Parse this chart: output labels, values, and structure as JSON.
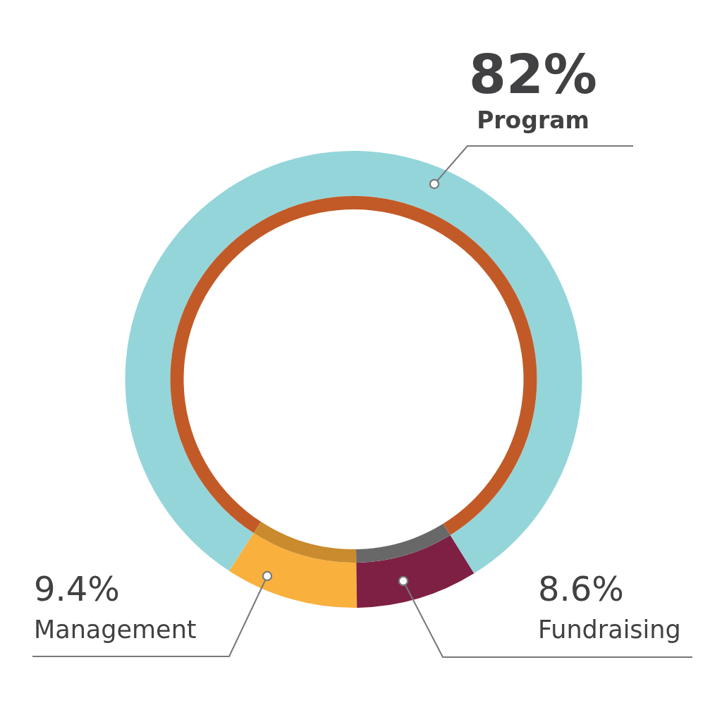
{
  "chart_data": {
    "type": "donut",
    "categories": [
      "Program",
      "Management",
      "Fundraising"
    ],
    "series": [
      {
        "values": [
          82,
          9.4,
          8.6
        ],
        "colors": [
          "#94d5da",
          "#f9b03d",
          "#7e2043"
        ],
        "value_labels": [
          "82%",
          "9.4%",
          "8.6%"
        ]
      },
      {
        "values": [
          82,
          9.4,
          8.6
        ],
        "colors": [
          "#c25a27",
          "#c98b2d",
          "#686868"
        ]
      }
    ]
  }
}
